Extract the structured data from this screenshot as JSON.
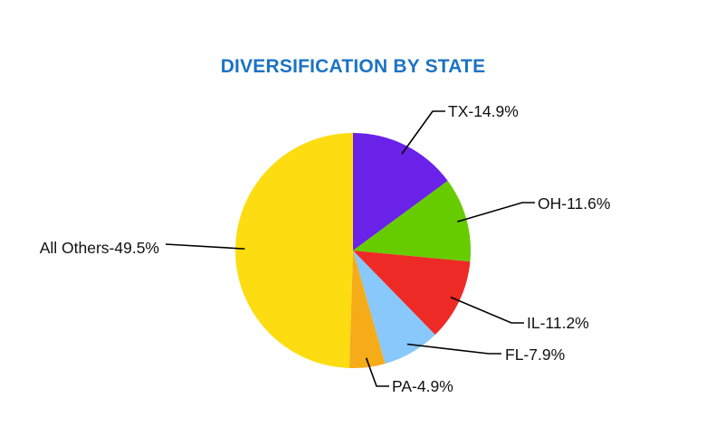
{
  "title": "DIVERSIFICATION BY STATE",
  "colors": {
    "title": "#1c73c4",
    "leader": "#000000"
  },
  "chart_data": {
    "type": "pie",
    "title": "DIVERSIFICATION BY STATE",
    "start_angle_deg": 0,
    "direction": "clockwise",
    "slices": [
      {
        "name": "TX",
        "value": 14.9,
        "label": "TX-14.9%",
        "color": "#6a22e8"
      },
      {
        "name": "OH",
        "value": 11.6,
        "label": "OH-11.6%",
        "color": "#66cc00"
      },
      {
        "name": "IL",
        "value": 11.2,
        "label": "IL-11.2%",
        "color": "#ee2a26"
      },
      {
        "name": "FL",
        "value": 7.9,
        "label": "FL-7.9%",
        "color": "#88c8fb"
      },
      {
        "name": "PA",
        "value": 4.9,
        "label": "PA-4.9%",
        "color": "#f6ab18"
      },
      {
        "name": "All Others",
        "value": 49.5,
        "label": "All Others-49.5%",
        "color": "#fddc12"
      }
    ]
  }
}
